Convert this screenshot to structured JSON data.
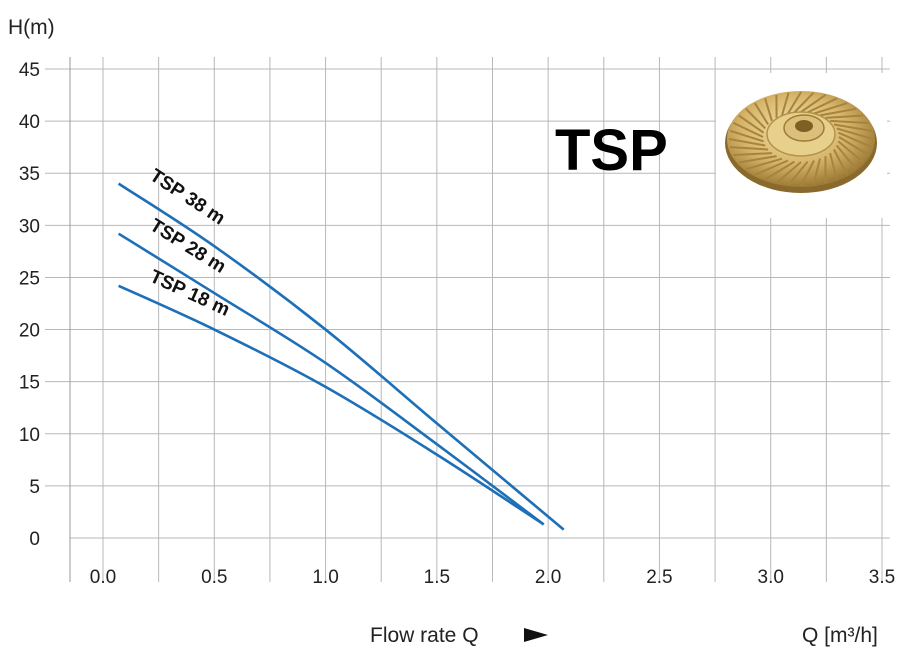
{
  "chart_data": {
    "type": "line",
    "title": "TSP",
    "ylabel": "H(m)",
    "xlabel": "Flow rate Q",
    "xunit": "Q [m³/h]",
    "xlim": [
      0.0,
      3.5
    ],
    "ylim": [
      0,
      45
    ],
    "xticks": [
      "0.0",
      "0.5",
      "1.0",
      "1.5",
      "2.0",
      "2.5",
      "3.0",
      "3.5"
    ],
    "yticks": [
      "0",
      "5",
      "10",
      "15",
      "20",
      "25",
      "30",
      "35",
      "40",
      "45"
    ],
    "grid": true,
    "series": [
      {
        "name": "TSP 38 m",
        "x": [
          0.07,
          0.5,
          1.0,
          1.5,
          2.07
        ],
        "y": [
          34.0,
          28.0,
          20.0,
          11.0,
          0.8
        ]
      },
      {
        "name": "TSP 28 m",
        "x": [
          0.07,
          0.5,
          1.0,
          1.5,
          1.98
        ],
        "y": [
          29.2,
          23.5,
          16.8,
          9.0,
          1.3
        ]
      },
      {
        "name": "TSP 18 m",
        "x": [
          0.07,
          0.5,
          1.0,
          1.5,
          1.98
        ],
        "y": [
          24.2,
          20.0,
          14.5,
          8.0,
          1.3
        ]
      }
    ]
  },
  "colors": {
    "series": "#1d6fb8",
    "brand": "#1a6fba",
    "grid": "#b8b8b8",
    "axis": "#999999"
  },
  "image": {
    "icon": "impeller-icon"
  }
}
